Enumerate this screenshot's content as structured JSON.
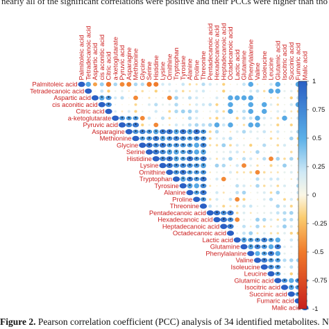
{
  "page": {
    "top_text": "nearly all of the significant correlations were positive and their PCCs were higher than those",
    "caption_label": "Figure 2.",
    "caption_text": " Pearson correlation coefficient (PCC) analysis of 34 identified metabolites. Note: * indicates"
  },
  "chart_data": {
    "type": "heatmap",
    "layout": "upper-triangle",
    "metabolites": [
      "Palmitoleic acid",
      "Tetradecanoic acid",
      "Aspartic acid",
      "cis aconitic acid",
      "Citric acid",
      "a-ketoglutarate",
      "Pyruvic acid",
      "Asparagine",
      "Methionine",
      "Glycine",
      "Serine",
      "Histidine",
      "Lysine",
      "Ornithine",
      "Tryptophan",
      "Tyrosine",
      "Alanine",
      "Proline",
      "Threonine",
      "Pentadecanoic acid",
      "Hexadecanoic acid",
      "Heptadecanoic acid",
      "Octadecanoic acid",
      "Lactic acid",
      "Glutamine",
      "Phenylalanine",
      "Valine",
      "Isoleucine",
      "Leucine",
      "Glutamic acid",
      "Isocitric acid",
      "Succinic acid",
      "Fumaric acid",
      "Malic acid"
    ],
    "colorbar": {
      "ticks": [
        "1",
        "0.75",
        "0.5",
        "0.25",
        "0",
        "-0.25",
        "-0.5",
        "-0.75",
        "-1"
      ],
      "range": [
        -1,
        1
      ],
      "colors": {
        "pos_strong": "#2a5fc4",
        "pos_mid": "#5bb0e8",
        "pos_weak": "#cfe9f6",
        "neutral": "#fbf7e6",
        "neg_weak": "#fbcc6e",
        "neg_mid": "#f07a2a",
        "neg_strong": "#c8201e"
      }
    },
    "significance_marker": "*",
    "label_color": "#cc2020",
    "blocks": [
      {
        "from": 0,
        "to": 1,
        "value": 0.75
      },
      {
        "from": 2,
        "to": 4,
        "value": 0.8
      },
      {
        "from": 5,
        "to": 8,
        "value": 0.85
      },
      {
        "from": 7,
        "to": 18,
        "value": 0.88
      },
      {
        "from": 19,
        "to": 22,
        "value": 0.9
      },
      {
        "from": 23,
        "to": 29,
        "value": 0.85
      },
      {
        "from": 29,
        "to": 33,
        "value": 0.8
      }
    ]
  }
}
